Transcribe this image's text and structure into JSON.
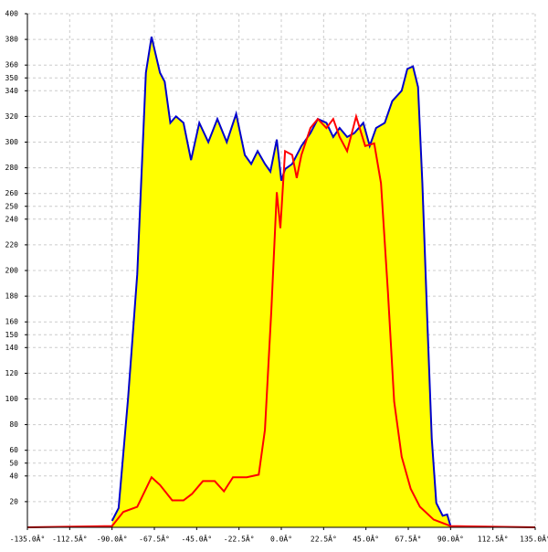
{
  "chart_data": {
    "type": "area",
    "xlim": [
      -135,
      135
    ],
    "ylim": [
      0,
      400
    ],
    "xticks": [
      {
        "value": -135,
        "label": "-135.0Â°"
      },
      {
        "value": -112.5,
        "label": "-112.5Â°"
      },
      {
        "value": -90,
        "label": "-90.0Â°"
      },
      {
        "value": -67.5,
        "label": "-67.5Â°"
      },
      {
        "value": -45,
        "label": "-45.0Â°"
      },
      {
        "value": -22.5,
        "label": "-22.5Â°"
      },
      {
        "value": 0,
        "label": "0.0Â°"
      },
      {
        "value": 22.5,
        "label": "22.5Â°"
      },
      {
        "value": 45,
        "label": "45.0Â°"
      },
      {
        "value": 67.5,
        "label": "67.5Â°"
      },
      {
        "value": 90,
        "label": "90.0Â°"
      },
      {
        "value": 112.5,
        "label": "112.5Â°"
      },
      {
        "value": 135,
        "label": "135.0Â°"
      }
    ],
    "yticks": [
      20,
      40,
      50,
      60,
      80,
      100,
      120,
      140,
      150,
      160,
      180,
      200,
      220,
      240,
      250,
      260,
      280,
      300,
      320,
      340,
      350,
      360,
      380,
      400
    ],
    "grid": true,
    "series": [
      {
        "color": "#0000cc",
        "fill": "#ffff00",
        "x": [
          -90,
          -86.5,
          -81.5,
          -76.6,
          -72,
          -69,
          -64.5,
          -62,
          -59,
          -56,
          -52,
          -48,
          -43.6,
          -38.8,
          -34,
          -29,
          -24,
          -19.4,
          -16,
          -12.6,
          -8.7,
          -5.8,
          -2.4,
          0,
          2,
          5.8,
          10.7,
          15.5,
          19.4,
          24,
          27.6,
          31,
          35,
          38.8,
          43.6,
          47,
          50.4,
          55,
          59,
          64,
          67,
          70,
          72.7,
          75,
          77.6,
          80,
          82.4,
          85.8,
          88.2,
          90
        ],
        "values": [
          5,
          15,
          100,
          197,
          354,
          382,
          354,
          347,
          315,
          320,
          315,
          286,
          315,
          300,
          318,
          300,
          322,
          290,
          283,
          293,
          283,
          277,
          302,
          270,
          279,
          283,
          297,
          307,
          318,
          315,
          304,
          311,
          304,
          307,
          315,
          297,
          311,
          315,
          332,
          340,
          357,
          359,
          343,
          268,
          162,
          69,
          19,
          9,
          10,
          1
        ]
      },
      {
        "color": "#ff0000",
        "x": [
          -135,
          -90,
          -84,
          -76.6,
          -69,
          -64.5,
          -58,
          -52,
          -47.5,
          -41.7,
          -35.4,
          -30.5,
          -25.7,
          -18.4,
          -12,
          -8.7,
          -5.3,
          -2.4,
          -0.5,
          2,
          5.8,
          8.2,
          10.7,
          15.5,
          19.4,
          24,
          27.6,
          31,
          35,
          39.8,
          44.6,
          49.4,
          53,
          56.7,
          60,
          64,
          68.8,
          73.7,
          81,
          90,
          135
        ],
        "values": [
          0,
          1,
          12,
          16,
          39,
          33,
          21,
          21,
          26,
          36,
          36,
          28,
          39,
          39,
          41,
          76,
          169,
          261,
          233,
          293,
          290,
          272,
          290,
          311,
          318,
          311,
          318,
          304,
          293,
          320,
          297,
          299,
          268,
          183,
          98,
          55,
          30,
          16,
          6,
          1,
          0
        ]
      }
    ]
  }
}
